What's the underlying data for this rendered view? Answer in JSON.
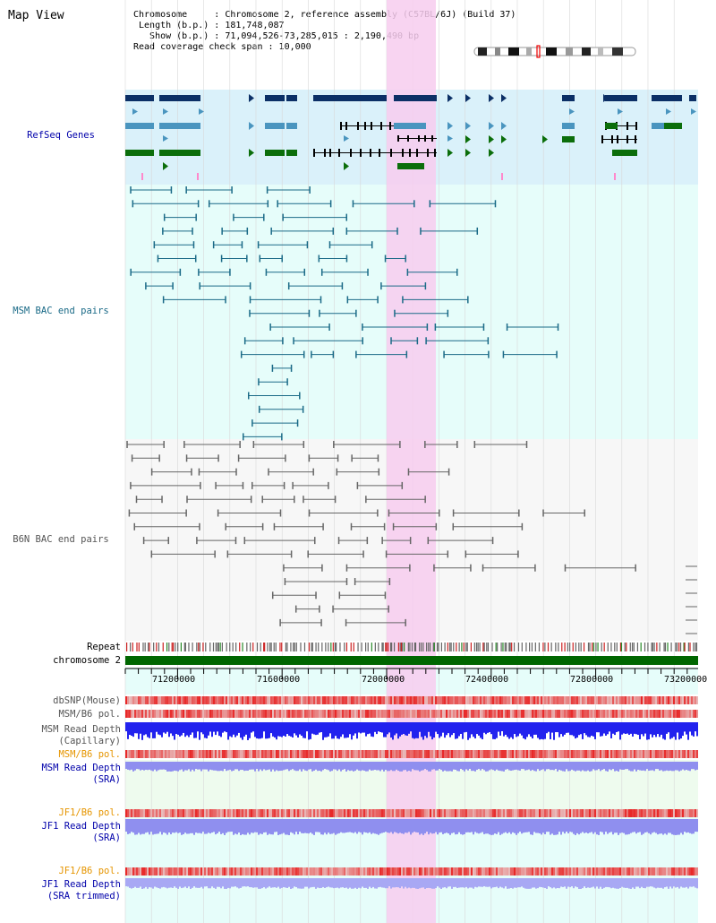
{
  "title": "Map View",
  "info": {
    "chromosome_line": "Chromosome     : Chromosome 2, reference assembly (C57BL/6J) (Build 37)",
    "length_line": " Length (b.p.) : 181,748,087",
    "show_line": "   Show (b.p.) : 71,094,526-73,285,015 : 2,190,490 bp",
    "coverage_line": "Read coverage check span : 10,000"
  },
  "tracks": {
    "refseq": "RefSeq Genes",
    "msm_bac": "MSM BAC end pairs",
    "b6n_bac": "B6N BAC end pairs",
    "repeat": "Repeat",
    "chromosome": "chromosome 2",
    "dbsnp": "dbSNP(Mouse)",
    "msm_b6_pol_1": "MSM/B6 pol.",
    "msm_read_depth_cap_1": "MSM Read Depth",
    "msm_read_depth_cap_2": "(Capillary)",
    "msm_b6_pol_2": "MSM/B6 pol.",
    "msm_read_depth_sra_1": "MSM Read Depth",
    "msm_read_depth_sra_2": "(SRA)",
    "jf1_b6_pol_1": "JF1/B6 pol.",
    "jf1_read_depth_sra_1": "JF1 Read Depth",
    "jf1_read_depth_sra_2": "(SRA)",
    "jf1_b6_pol_2": "JF1/B6 pol.",
    "jf1_read_depth_trim_1": "JF1 Read Depth",
    "jf1_read_depth_trim_2": "(SRA trimmed)"
  },
  "axis": {
    "ticks": [
      "71200000",
      "71600000",
      "72000000",
      "72400000",
      "72800000",
      "73200000"
    ]
  },
  "colors": {
    "refseq_dark": "#0b2f66",
    "refseq_mid": "#4a95bf",
    "refseq_green": "#0b6e0b",
    "highlight": "#f7ccee",
    "msm_bac": "#1a6a87",
    "b6n_bac": "#666666",
    "chromosome_bar": "#006600",
    "snp_red": "#e84a4a",
    "depth_blue": "#2222ee",
    "depth_lilac": "#8f8fef",
    "label_blue": "#0000aa",
    "label_orange": "#e69500"
  }
}
